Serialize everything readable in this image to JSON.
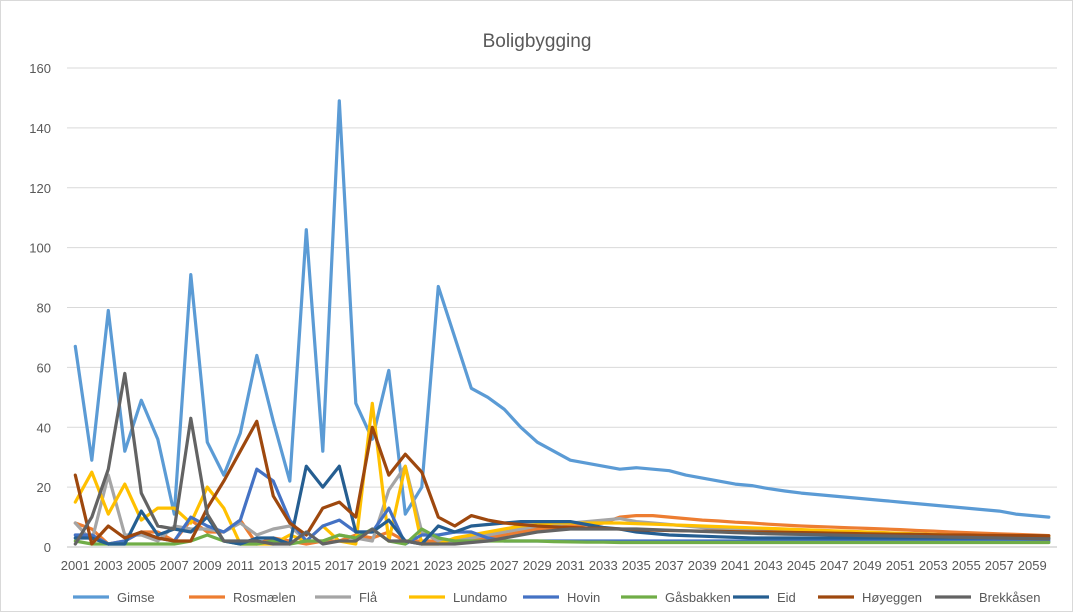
{
  "chart_data": {
    "type": "line",
    "title": "Boligbygging",
    "xlabel": "",
    "ylabel": "",
    "ylim": [
      0,
      160
    ],
    "yticks": [
      0,
      20,
      40,
      60,
      80,
      100,
      120,
      140,
      160
    ],
    "grid": "horizontal",
    "legend": "bottom",
    "x_start": 2001,
    "x_end": 2060,
    "x_tick_labels": [
      "2001",
      "2003",
      "2005",
      "2007",
      "2009",
      "2011",
      "2013",
      "2015",
      "2017",
      "2019",
      "2021",
      "2023",
      "2025",
      "2027",
      "2029",
      "2031",
      "2033",
      "2035",
      "2037",
      "2039",
      "2041",
      "2043",
      "2045",
      "2047",
      "2049",
      "2051",
      "2053",
      "2055",
      "2057",
      "2059"
    ],
    "series": [
      {
        "name": "Gimse",
        "color": "#5b9bd5",
        "values": [
          67,
          29,
          79,
          32,
          49,
          36,
          11,
          91,
          35,
          24,
          38,
          64,
          42,
          22,
          106,
          32,
          149,
          48,
          36,
          59,
          11,
          20,
          87,
          70,
          53,
          50,
          46,
          40,
          35,
          32,
          29,
          28,
          27,
          26,
          26.5,
          26,
          25.5,
          24,
          23,
          22,
          21,
          20.5,
          19.5,
          18.7,
          18,
          17.5,
          17,
          16.5,
          16,
          15.5,
          15,
          14.5,
          14,
          13.5,
          13,
          12.5,
          12,
          11,
          10.5,
          10
        ]
      },
      {
        "name": "Rosmælen",
        "color": "#ed7d31",
        "values": [
          8,
          6,
          1,
          2,
          5,
          5,
          2,
          9,
          5,
          5,
          9,
          1,
          3,
          2,
          1,
          2,
          2,
          4,
          3,
          5,
          2,
          2,
          2,
          2,
          2,
          3,
          4,
          5,
          6,
          6.5,
          7,
          7.5,
          8,
          10,
          10.5,
          10.5,
          10,
          9.5,
          9,
          8.7,
          8.3,
          8,
          7.6,
          7.3,
          7,
          6.8,
          6.6,
          6.4,
          6.2,
          6,
          5.8,
          5.5,
          5.3,
          5,
          4.8,
          4.6,
          4.4,
          4.2,
          4,
          3.8
        ]
      },
      {
        "name": "Flå",
        "color": "#a5a5a5",
        "values": [
          8,
          2,
          24,
          4,
          4,
          2,
          7,
          6,
          6,
          5,
          8,
          4,
          6,
          7,
          2,
          2,
          4,
          3,
          2,
          19,
          27,
          5,
          2,
          2,
          3,
          4,
          5,
          6,
          7,
          7.5,
          8,
          8.5,
          9,
          9.5,
          8.5,
          8,
          7.5,
          7,
          6.5,
          6,
          5.8,
          5.6,
          5.4,
          5.2,
          5,
          4.8,
          4.6,
          4.4,
          4.2,
          4,
          3.8,
          3.6,
          3.4,
          3.2,
          3,
          2.9,
          2.8,
          2.7,
          2.6,
          2.5
        ]
      },
      {
        "name": "Lundamo",
        "color": "#ffc000",
        "values": [
          15,
          25,
          11,
          21,
          9,
          13,
          13,
          8,
          20,
          13,
          1,
          1,
          1,
          4,
          2,
          7,
          2,
          1,
          48,
          2,
          27,
          1,
          1,
          3,
          4,
          5,
          6,
          7,
          7.5,
          8,
          8,
          8,
          8,
          8,
          7.8,
          7.6,
          7.4,
          7.2,
          7,
          6.8,
          6.6,
          6.4,
          6.2,
          6,
          5.8,
          5.6,
          5.4,
          5.2,
          5,
          4.8,
          4.6,
          4.4,
          4.2,
          4,
          3.8,
          3.6,
          3.5,
          3.4,
          3.3,
          3.2
        ]
      },
      {
        "name": "Hovin",
        "color": "#4472c4",
        "values": [
          4,
          4,
          1,
          2,
          5,
          3,
          2,
          10,
          7,
          5,
          9,
          26,
          22,
          9,
          2,
          7,
          9,
          5,
          5,
          13,
          1,
          4,
          4,
          5,
          5,
          3,
          2,
          2,
          2,
          2,
          2,
          2,
          2,
          2,
          2,
          2,
          2,
          2,
          2,
          2,
          2,
          2,
          2,
          2,
          2,
          2,
          2,
          2,
          2,
          2,
          2,
          2,
          2,
          2,
          2,
          2,
          2,
          2,
          2,
          2
        ]
      },
      {
        "name": "Gåsbakken",
        "color": "#70ad47",
        "values": [
          2,
          1,
          1,
          1,
          1,
          1,
          1,
          2,
          4,
          2,
          1,
          1,
          2,
          1,
          2,
          2,
          4,
          3,
          6,
          2,
          1,
          6,
          3,
          2,
          2,
          2,
          2,
          2,
          2,
          1.8,
          1.7,
          1.6,
          1.6,
          1.5,
          1.5,
          1.5,
          1.5,
          1.5,
          1.5,
          1.5,
          1.5,
          1.5,
          1.5,
          1.5,
          1.5,
          1.5,
          1.5,
          1.5,
          1.5,
          1.5,
          1.5,
          1.5,
          1.5,
          1.5,
          1.5,
          1.5,
          1.5,
          1.5,
          1.5,
          1.5
        ]
      },
      {
        "name": "Eid",
        "color": "#255e91",
        "values": [
          3,
          3,
          1,
          1,
          12,
          4,
          6,
          5,
          10,
          2,
          1,
          3,
          3,
          1,
          27,
          20,
          27,
          5,
          5,
          9,
          2,
          1,
          7,
          5,
          7,
          7.5,
          8,
          8.5,
          8.5,
          8.5,
          8.5,
          7.5,
          6.5,
          6,
          5,
          4.5,
          4,
          3.8,
          3.6,
          3.4,
          3.2,
          3,
          3,
          3,
          3,
          3,
          3,
          3,
          3,
          3,
          3,
          3,
          3,
          3,
          3,
          3,
          3,
          3,
          3,
          3
        ]
      },
      {
        "name": "Høyeggen",
        "color": "#9e480e",
        "values": [
          24,
          1,
          7,
          3,
          5,
          3,
          2,
          2,
          13,
          22,
          32,
          42,
          17,
          8,
          4,
          13,
          15,
          10,
          40,
          24,
          31,
          25,
          10,
          7,
          10.5,
          9,
          8,
          7.5,
          7,
          6.7,
          6.5,
          6.3,
          6.2,
          6,
          5.8,
          5.6,
          5.5,
          5.4,
          5.3,
          5.2,
          5.1,
          5,
          5,
          4.9,
          4.8,
          4.7,
          4.6,
          4.5,
          4.4,
          4.3,
          4.2,
          4.2,
          4.1,
          4,
          4,
          3.9,
          3.9,
          3.8,
          3.8,
          3.7
        ]
      },
      {
        "name": "Brekkåsen",
        "color": "#636363",
        "values": [
          1,
          10,
          26,
          58,
          18,
          7,
          6,
          43,
          11,
          2,
          2,
          2,
          1,
          1,
          5,
          1,
          2,
          2,
          6,
          2,
          2,
          1,
          1,
          1,
          1.5,
          2,
          3,
          4,
          5,
          5.5,
          6,
          6,
          6,
          6,
          6,
          5.8,
          5.6,
          5.4,
          5.2,
          5,
          4.8,
          4.6,
          4.4,
          4.3,
          4.2,
          4.1,
          4,
          3.9,
          3.8,
          3.7,
          3.6,
          3.5,
          3.4,
          3.3,
          3.2,
          3.1,
          3,
          2.9,
          2.8,
          2.7
        ]
      }
    ]
  }
}
